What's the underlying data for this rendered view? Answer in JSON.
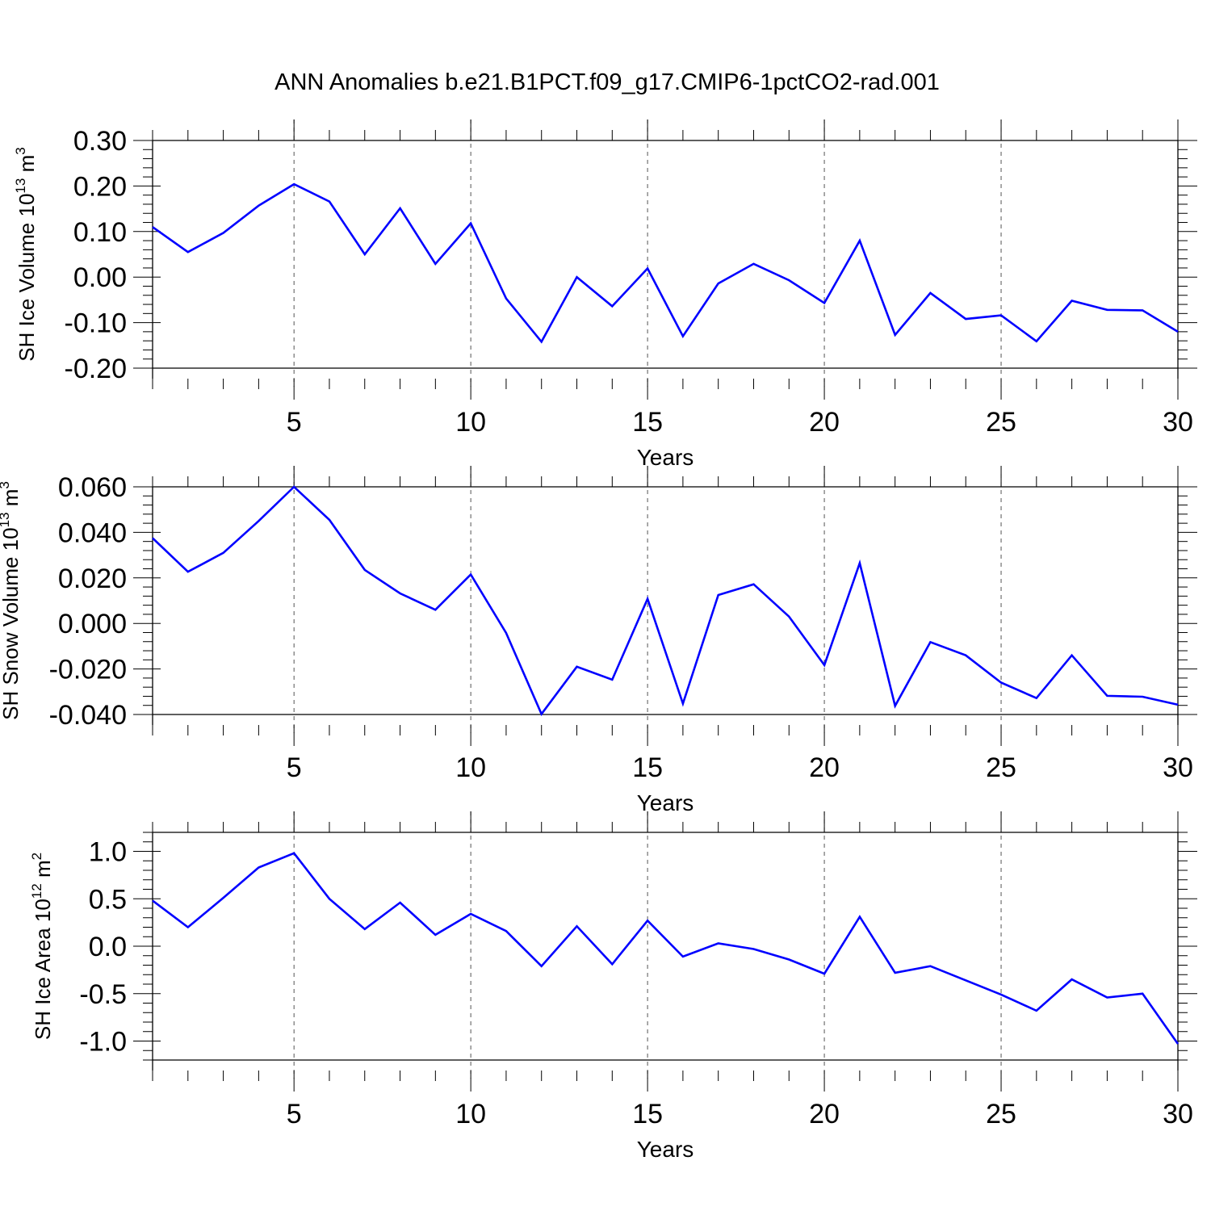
{
  "figure": {
    "title": "ANN Anomalies b.e21.B1PCT.f09_g17.CMIP6-1pctCO2-rad.001"
  },
  "colors": {
    "line": "#0000ff",
    "axes": "#000000",
    "grid": "#555555",
    "background": "#ffffff"
  },
  "chart_data": [
    {
      "type": "line",
      "xlabel": "Years",
      "ylabel": {
        "text": "SH Ice Volume 10",
        "exp": "13",
        "unit": " m",
        "unit_exp": "3"
      },
      "xlim": [
        1,
        30
      ],
      "ylim": [
        -0.2,
        0.3
      ],
      "xticks": [
        5,
        10,
        15,
        20,
        25,
        30
      ],
      "xtick_labels": [
        "5",
        "10",
        "15",
        "20",
        "25",
        "30"
      ],
      "yticks": [
        -0.2,
        -0.1,
        0.0,
        0.1,
        0.2,
        0.3
      ],
      "ytick_labels": [
        "-0.20",
        "-0.10",
        "0.00",
        "0.10",
        "0.20",
        "0.30"
      ],
      "grid": "vertical dashed at major x ticks",
      "series": [
        {
          "x": [
            1,
            2,
            3,
            4,
            5,
            6,
            7,
            8,
            9,
            10,
            11,
            12,
            13,
            14,
            15,
            16,
            17,
            18,
            19,
            20,
            21,
            22,
            23,
            24,
            25,
            26,
            27,
            28,
            29,
            30
          ],
          "values": [
            0.11,
            0.055,
            0.097,
            0.157,
            0.204,
            0.166,
            0.05,
            0.151,
            0.029,
            0.118,
            -0.047,
            -0.142,
            0.0,
            -0.064,
            0.019,
            -0.13,
            -0.014,
            0.029,
            -0.007,
            -0.057,
            0.08,
            -0.127,
            -0.035,
            -0.092,
            -0.084,
            -0.141,
            -0.052,
            -0.072,
            -0.073,
            -0.12
          ]
        }
      ]
    },
    {
      "type": "line",
      "xlabel": "Years",
      "ylabel": {
        "text": "SH Snow Volume 10",
        "exp": "13",
        "unit": " m",
        "unit_exp": "3"
      },
      "xlim": [
        1,
        30
      ],
      "ylim": [
        -0.04,
        0.06
      ],
      "xticks": [
        5,
        10,
        15,
        20,
        25,
        30
      ],
      "xtick_labels": [
        "5",
        "10",
        "15",
        "20",
        "25",
        "30"
      ],
      "yticks": [
        -0.04,
        -0.02,
        0.0,
        0.02,
        0.04,
        0.06
      ],
      "ytick_labels": [
        "-0.040",
        "-0.020",
        "0.000",
        "0.020",
        "0.040",
        "0.060"
      ],
      "grid": "vertical dashed at major x ticks",
      "series": [
        {
          "x": [
            1,
            2,
            3,
            4,
            5,
            6,
            7,
            8,
            9,
            10,
            11,
            12,
            13,
            14,
            15,
            16,
            17,
            18,
            19,
            20,
            21,
            22,
            23,
            24,
            25,
            26,
            27,
            28,
            29,
            30
          ],
          "values": [
            0.0375,
            0.0227,
            0.031,
            0.045,
            0.06,
            0.0455,
            0.0235,
            0.0132,
            0.006,
            0.0215,
            -0.0042,
            -0.0398,
            -0.019,
            -0.0247,
            0.0108,
            -0.0352,
            0.0125,
            0.0172,
            0.003,
            -0.0183,
            0.0265,
            -0.0362,
            -0.0082,
            -0.014,
            -0.026,
            -0.0328,
            -0.014,
            -0.0318,
            -0.0322,
            -0.0357
          ]
        }
      ]
    },
    {
      "type": "line",
      "xlabel": "Years",
      "ylabel": {
        "text": "SH Ice Area 10",
        "exp": "12",
        "unit": " m",
        "unit_exp": "2"
      },
      "xlim": [
        1,
        30
      ],
      "ylim": [
        -1.2,
        1.2
      ],
      "xticks": [
        5,
        10,
        15,
        20,
        25,
        30
      ],
      "xtick_labels": [
        "5",
        "10",
        "15",
        "20",
        "25",
        "30"
      ],
      "yticks": [
        -1.0,
        -0.5,
        0.0,
        0.5,
        1.0
      ],
      "ytick_labels": [
        "-1.0",
        "-0.5",
        "0.0",
        "0.5",
        "1.0"
      ],
      "grid": "vertical dashed at major x ticks",
      "series": [
        {
          "x": [
            1,
            2,
            3,
            4,
            5,
            6,
            7,
            8,
            9,
            10,
            11,
            12,
            13,
            14,
            15,
            16,
            17,
            18,
            19,
            20,
            21,
            22,
            23,
            24,
            25,
            26,
            27,
            28,
            29,
            30
          ],
          "values": [
            0.48,
            0.2,
            0.51,
            0.83,
            0.98,
            0.5,
            0.18,
            0.46,
            0.12,
            0.34,
            0.16,
            -0.21,
            0.21,
            -0.19,
            0.27,
            -0.11,
            0.03,
            -0.03,
            -0.14,
            -0.29,
            0.31,
            -0.28,
            -0.21,
            -0.36,
            -0.51,
            -0.68,
            -0.35,
            -0.54,
            -0.5,
            -1.03
          ]
        }
      ]
    }
  ]
}
